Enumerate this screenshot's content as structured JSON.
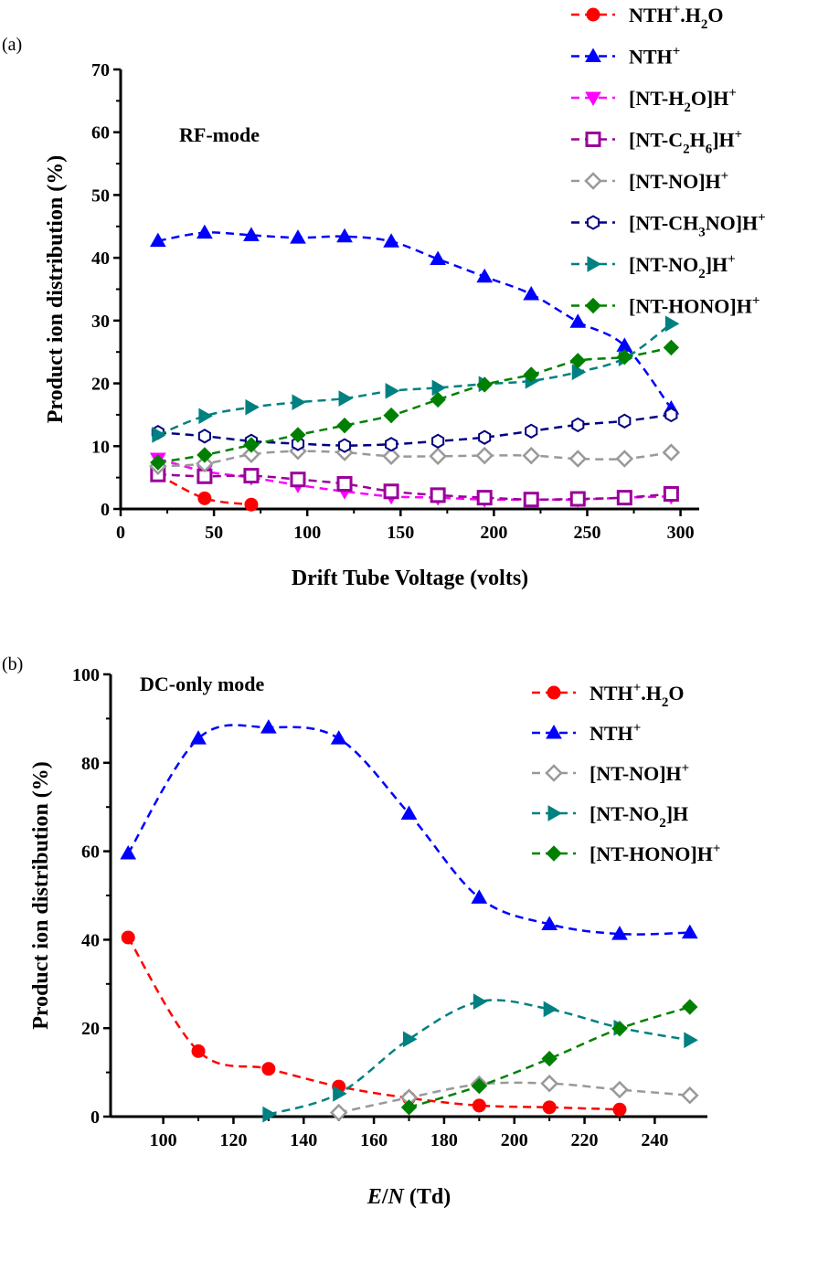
{
  "chart_data": [
    {
      "panel_label": "(a)",
      "type": "line",
      "annotation": "RF-mode",
      "xlabel": "Drift Tube Voltage (volts)",
      "ylabel": "Product ion distribution (%)",
      "xlim": [
        0,
        310
      ],
      "ylim": [
        0,
        70
      ],
      "xticks": [
        0,
        50,
        100,
        150,
        200,
        250,
        300
      ],
      "yticks": [
        0,
        10,
        20,
        30,
        40,
        50,
        60,
        70
      ],
      "legend_position": "top-right, outside plot area",
      "series": [
        {
          "key": "nth_h2o",
          "label_main": "NTH",
          "label_sup": "+",
          "label_tail": ".H",
          "label_sub": "2",
          "label_end": "O",
          "color": "#ff0000",
          "marker": "circle-filled",
          "x": [
            20,
            45,
            70
          ],
          "y": [
            5.5,
            1.7,
            0.7
          ]
        },
        {
          "key": "nth",
          "label_main": "NTH",
          "label_sup": "+",
          "color": "#0000ff",
          "marker": "triangle-up-filled",
          "x": [
            20,
            45,
            70,
            95,
            120,
            145,
            170,
            195,
            220,
            245,
            270,
            295
          ],
          "y": [
            42.7,
            44,
            43.6,
            43.2,
            43.4,
            42.6,
            39.8,
            37,
            34.2,
            29.8,
            26,
            16
          ]
        },
        {
          "key": "nt_h2o",
          "label_main": "[NT-H",
          "label_sub": "2",
          "label_end": "O]H",
          "label_sup": "+",
          "color": "#ff00ff",
          "marker": "triangle-down-filled",
          "x": [
            20,
            45,
            70,
            95,
            120,
            145,
            170,
            195,
            220,
            245,
            270,
            295
          ],
          "y": [
            8,
            6,
            5,
            3.8,
            2.8,
            2,
            1.8,
            1.5,
            1.5,
            1.5,
            1.8,
            2
          ]
        },
        {
          "key": "nt_c2h6",
          "label_main": "[NT-C",
          "label_sub": "2",
          "label_end": "H",
          "label_sub2": "6",
          "label_end2": "]H",
          "label_sup": "+",
          "color": "#990099",
          "marker": "square-open",
          "x": [
            20,
            45,
            70,
            95,
            120,
            145,
            170,
            195,
            220,
            245,
            270,
            295
          ],
          "y": [
            5.5,
            5.2,
            5.3,
            4.7,
            4,
            2.8,
            2.2,
            1.8,
            1.5,
            1.6,
            1.8,
            2.4
          ]
        },
        {
          "key": "nt_no",
          "label_main": "[NT-NO]H",
          "label_sup": "+",
          "color": "#999999",
          "marker": "diamond-open",
          "x": [
            20,
            45,
            70,
            95,
            120,
            145,
            170,
            195,
            220,
            245,
            270,
            295
          ],
          "y": [
            6.8,
            7.2,
            8.7,
            9.2,
            9,
            8.4,
            8.4,
            8.5,
            8.5,
            8,
            8,
            9
          ]
        },
        {
          "key": "nt_ch3no",
          "label_main": "[NT-CH",
          "label_sub": "3",
          "label_end": "NO]H",
          "label_sup": "+",
          "color": "#000080",
          "marker": "hexagon-open",
          "x": [
            20,
            45,
            70,
            95,
            120,
            145,
            170,
            195,
            220,
            245,
            270,
            295
          ],
          "y": [
            12.2,
            11.6,
            10.8,
            10.4,
            10.1,
            10.3,
            10.8,
            11.4,
            12.4,
            13.4,
            14,
            15
          ]
        },
        {
          "key": "nt_no2",
          "label_main": "[NT-NO",
          "label_sub": "2",
          "label_end": "]H",
          "label_sup": "+",
          "color": "#008080",
          "marker": "triangle-right-filled",
          "x": [
            20,
            45,
            70,
            95,
            120,
            145,
            170,
            195,
            220,
            245,
            270,
            295
          ],
          "y": [
            11.8,
            14.8,
            16.2,
            17,
            17.6,
            18.8,
            19.3,
            19.9,
            20.4,
            21.8,
            24,
            29.5
          ]
        },
        {
          "key": "nt_hono",
          "label_main": "[NT-HONO]H",
          "label_sup": "+",
          "color": "#008000",
          "marker": "diamond-filled",
          "x": [
            20,
            45,
            70,
            95,
            120,
            145,
            170,
            195,
            220,
            245,
            270,
            295
          ],
          "y": [
            7.4,
            8.6,
            10.2,
            11.8,
            13.3,
            14.9,
            17.4,
            19.8,
            21.4,
            23.6,
            24.2,
            25.7
          ]
        }
      ]
    },
    {
      "panel_label": "(b)",
      "type": "line",
      "annotation": "DC-only mode",
      "xlabel_italic_1": "E",
      "xlabel_slash": "/",
      "xlabel_italic_2": "N",
      "xlabel_rest": " (Td)",
      "ylabel": "Product ion distribution (%)",
      "xlim": [
        85,
        255
      ],
      "ylim": [
        0,
        100
      ],
      "xticks": [
        100,
        120,
        140,
        160,
        180,
        200,
        220,
        240
      ],
      "yticks": [
        0,
        20,
        40,
        60,
        80,
        100
      ],
      "legend_position": "top-right, inside plot area",
      "series": [
        {
          "key": "nth_h2o",
          "label_main": "NTH",
          "label_sup": "+",
          "label_tail": ".H",
          "label_sub": "2",
          "label_end": "O",
          "color": "#ff0000",
          "marker": "circle-filled",
          "x": [
            90,
            110,
            130,
            150,
            170,
            190,
            210,
            230
          ],
          "y": [
            40.5,
            14.8,
            10.8,
            6.8,
            4.2,
            2.5,
            2.1,
            1.6
          ]
        },
        {
          "key": "nth",
          "label_main": "NTH",
          "label_sup": "+",
          "color": "#0000ff",
          "marker": "triangle-up-filled",
          "x": [
            90,
            110,
            130,
            150,
            170,
            190,
            210,
            230,
            250
          ],
          "y": [
            59.5,
            85.5,
            88,
            85.5,
            68.5,
            49.5,
            43.5,
            41.3,
            41.6
          ]
        },
        {
          "key": "nt_no",
          "label_main": "[NT-NO]H",
          "label_sup": "+",
          "color": "#999999",
          "marker": "diamond-open",
          "x": [
            150,
            170,
            190,
            210,
            230,
            250
          ],
          "y": [
            0.9,
            4.3,
            7.3,
            7.5,
            6.1,
            4.8
          ]
        },
        {
          "key": "nt_no2",
          "label_main": " [NT-NO",
          "label_sub": "2",
          "label_end": "]H",
          "color": "#008080",
          "marker": "triangle-right-filled",
          "x": [
            130,
            150,
            170,
            190,
            210,
            230,
            250
          ],
          "y": [
            0.5,
            5.2,
            17.5,
            26,
            24.3,
            20.1,
            17.3
          ]
        },
        {
          "key": "nt_hono",
          "label_main": "[NT-HONO]H",
          "label_sup": "+",
          "color": "#008000",
          "marker": "diamond-filled",
          "x": [
            170,
            190,
            210,
            230,
            250
          ],
          "y": [
            2.1,
            6.9,
            13.1,
            19.9,
            24.8
          ]
        }
      ]
    }
  ]
}
